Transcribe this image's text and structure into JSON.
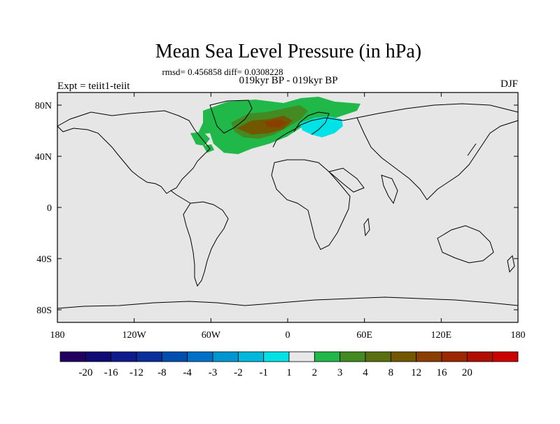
{
  "title": "Mean Sea Level Pressure (in hPa)",
  "stats": "rmsd= 0.456858 diff= 0.0308228",
  "subtitle": "019kyr BP - 019kyr BP",
  "expt": "Expt = teiit1-teiit",
  "season": "DJF",
  "lat_ticks": [
    "80N",
    "40N",
    "0",
    "40S",
    "80S"
  ],
  "lon_ticks": [
    "180",
    "120W",
    "60W",
    "0",
    "60E",
    "120E",
    "180"
  ],
  "colorbar": {
    "colors": [
      "#21005f",
      "#100a74",
      "#0f1a8c",
      "#0a2f9a",
      "#004fb0",
      "#0070c8",
      "#0096d0",
      "#00b8dc",
      "#00e2e6",
      "#e8e8e8",
      "#21b84a",
      "#448a22",
      "#5a6f10",
      "#735600",
      "#8a3e00",
      "#9b2800",
      "#b00e00",
      "#cc0000"
    ],
    "labels": [
      "-20",
      "-16",
      "-12",
      "-8",
      "-4",
      "-3",
      "-2",
      "-1",
      "1",
      "2",
      "3",
      "4",
      "8",
      "12",
      "16",
      "20"
    ]
  },
  "colors": {
    "ocean_land_background": "#e6e6e6",
    "anomaly_positive_weak": "#21b84a",
    "anomaly_positive_mid": "#448a22",
    "anomaly_positive_strong": "#735600",
    "anomaly_negative_weak": "#00e2e6"
  }
}
